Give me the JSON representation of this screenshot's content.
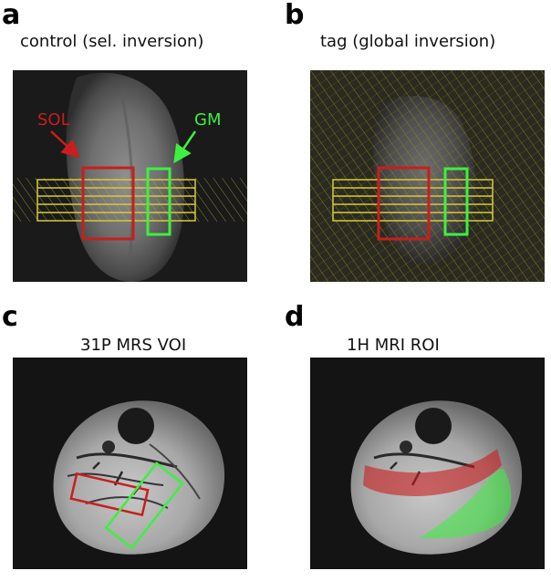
{
  "panels": {
    "a": {
      "letter": "a",
      "caption": "control (sel. inversion)",
      "label_sol": "SOL",
      "label_gm": "GM"
    },
    "b": {
      "letter": "b",
      "caption": "tag (global inversion)"
    },
    "c": {
      "letter": "c",
      "caption": "31P MRS VOI"
    },
    "d": {
      "letter": "d",
      "caption": "1H MRI ROI"
    }
  },
  "colors": {
    "sol": "#c81e1e",
    "gm": "#3df040",
    "tag": "#d6c93a",
    "background": "#1a1a1a"
  }
}
